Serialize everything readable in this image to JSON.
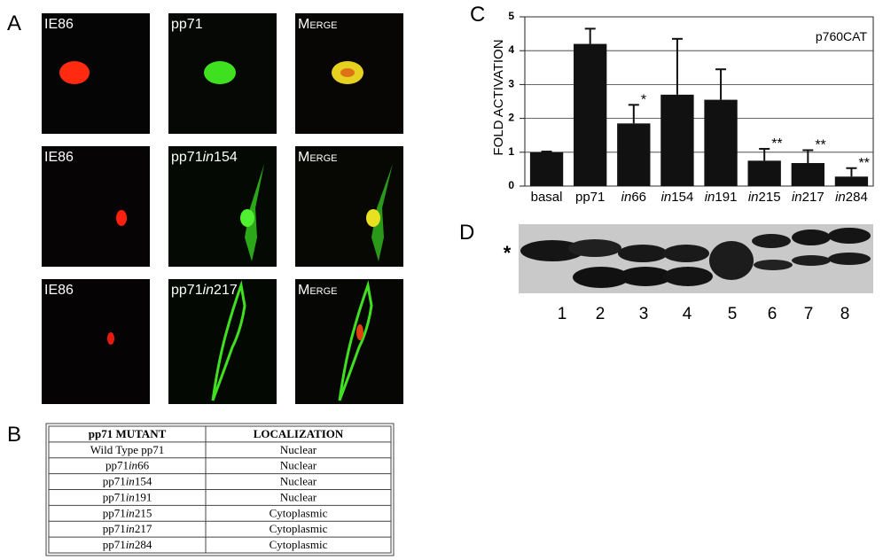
{
  "panel_a": {
    "label": "A",
    "rows": [
      [
        "IE86",
        "pp71",
        "Merge"
      ],
      [
        "IE86",
        "pp71in154",
        "Merge"
      ],
      [
        "IE86",
        "pp71in217",
        "Merge"
      ]
    ]
  },
  "panel_b": {
    "label": "B",
    "table": {
      "header": [
        "pp71 MUTANT",
        "LOCALIZATION"
      ],
      "rows": [
        [
          "Wild Type pp71",
          "Nuclear"
        ],
        [
          "pp71in66",
          "Nuclear"
        ],
        [
          "pp71in154",
          "Nuclear"
        ],
        [
          "pp71in191",
          "Nuclear"
        ],
        [
          "pp71in215",
          "Cytoplasmic"
        ],
        [
          "pp71in217",
          "Cytoplasmic"
        ],
        [
          "pp71in284",
          "Cytoplasmic"
        ]
      ]
    }
  },
  "panel_c": {
    "label": "C",
    "chart_data": {
      "type": "bar",
      "title": "p760CAT",
      "y_label": "FOLD ACTIVATION",
      "categories": [
        "basal",
        "pp71",
        "in66",
        "in154",
        "in191",
        "in215",
        "in217",
        "in284"
      ],
      "values": [
        1.0,
        4.2,
        1.85,
        2.7,
        2.55,
        0.75,
        0.68,
        0.28
      ],
      "errors": [
        0.02,
        0.45,
        0.55,
        1.65,
        0.9,
        0.35,
        0.38,
        0.25
      ],
      "annotations": [
        null,
        null,
        "*",
        null,
        null,
        "**",
        "**",
        "**"
      ],
      "color": "#111111",
      "ylim": [
        0,
        5
      ],
      "yticks": [
        0,
        1,
        2,
        3,
        4,
        5
      ],
      "grid": true
    }
  },
  "panel_d": {
    "label": "D",
    "marker": "*",
    "lanes": [
      "1",
      "2",
      "3",
      "4",
      "5",
      "6",
      "7",
      "8"
    ]
  }
}
